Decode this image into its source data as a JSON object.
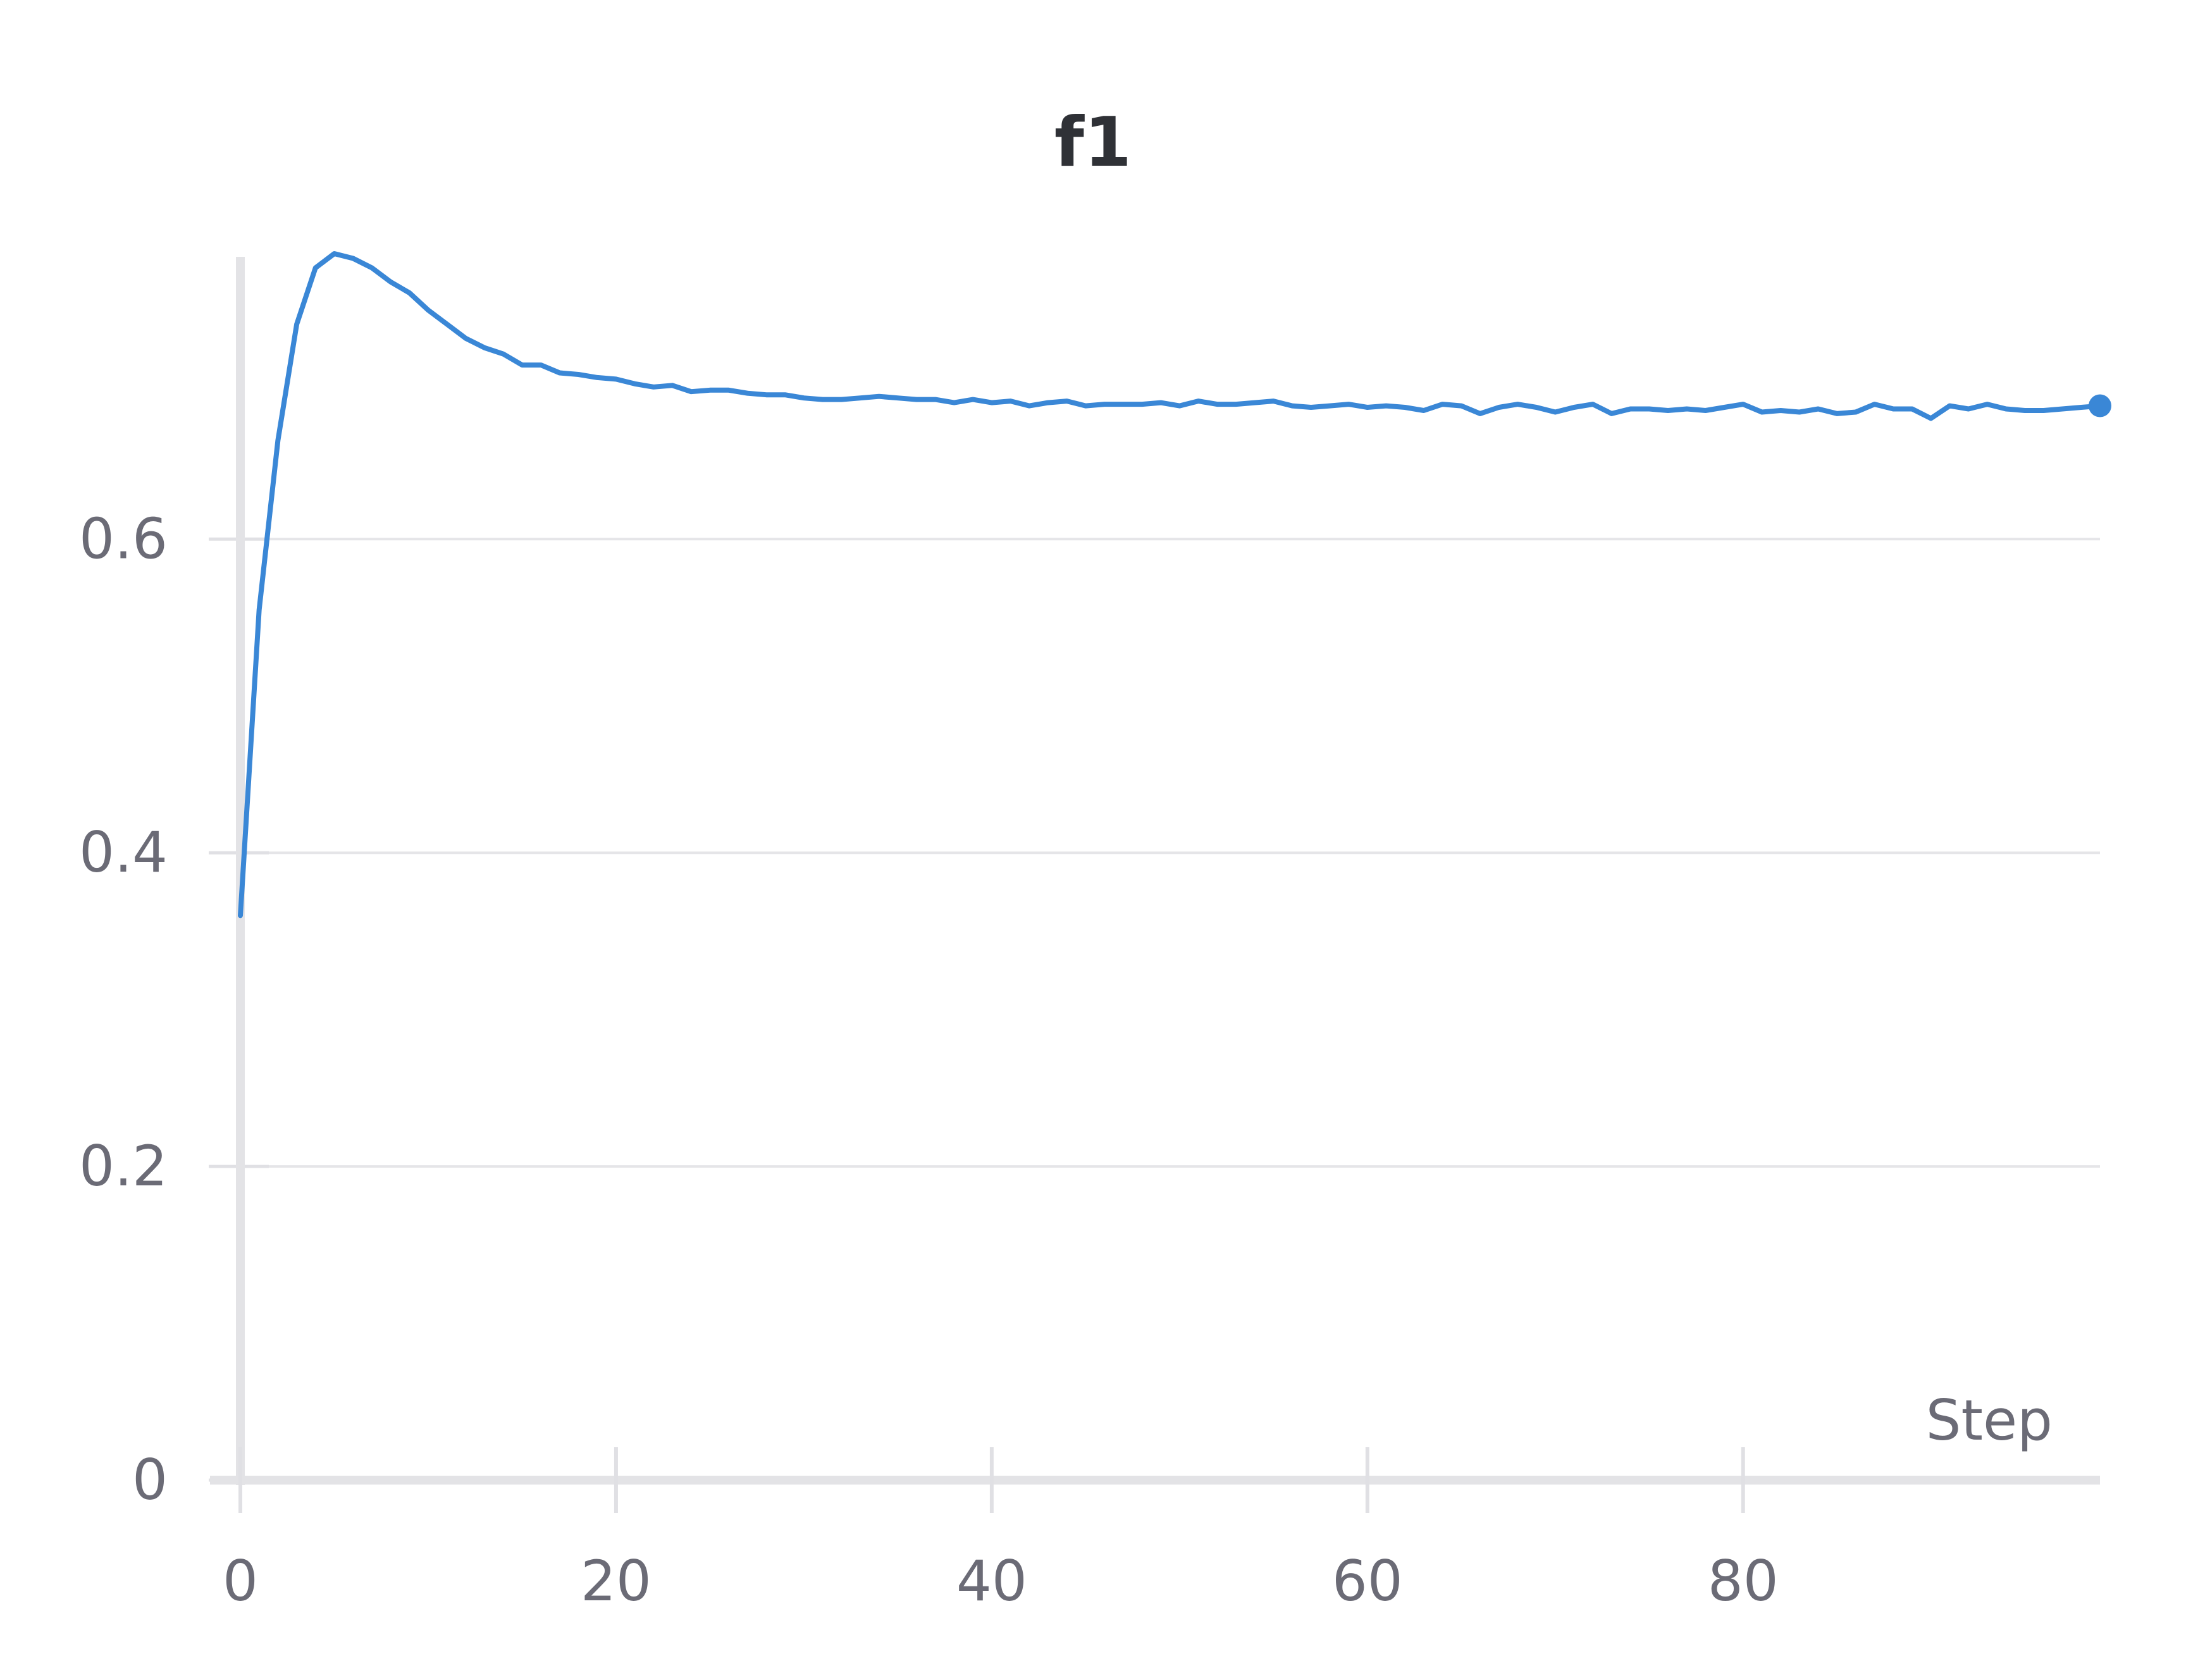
{
  "chart_data": {
    "type": "line",
    "title": "f1",
    "xlabel": "Step",
    "ylabel": "",
    "xlim": [
      0,
      99
    ],
    "ylim": [
      0,
      0.78
    ],
    "xticks": [
      0,
      20,
      40,
      60,
      80
    ],
    "yticks": [
      0,
      0.2,
      0.4,
      0.6
    ],
    "xtick_labels": [
      "0",
      "20",
      "40",
      "60",
      "80"
    ],
    "ytick_labels": [
      "0",
      "0.2",
      "0.4",
      "0.6"
    ],
    "grid": "horizontal",
    "legend": "none",
    "series": [
      {
        "color": "#3a87d6",
        "x": [
          0,
          1,
          2,
          3,
          4,
          5,
          6,
          7,
          8,
          9,
          10,
          11,
          12,
          13,
          14,
          15,
          16,
          17,
          18,
          19,
          20,
          21,
          22,
          23,
          24,
          25,
          26,
          27,
          28,
          29,
          30,
          31,
          32,
          33,
          34,
          35,
          36,
          37,
          38,
          39,
          40,
          41,
          42,
          43,
          44,
          45,
          46,
          47,
          48,
          49,
          50,
          51,
          52,
          53,
          54,
          55,
          56,
          57,
          58,
          59,
          60,
          61,
          62,
          63,
          64,
          65,
          66,
          67,
          68,
          69,
          70,
          71,
          72,
          73,
          74,
          75,
          76,
          77,
          78,
          79,
          80,
          81,
          82,
          83,
          84,
          85,
          86,
          87,
          88,
          89,
          90,
          91,
          92,
          93,
          94,
          95,
          96,
          97,
          98,
          99
        ],
        "y": [
          0.36,
          0.555,
          0.663,
          0.737,
          0.773,
          0.782,
          0.779,
          0.773,
          0.764,
          0.757,
          0.746,
          0.737,
          0.728,
          0.722,
          0.718,
          0.711,
          0.711,
          0.706,
          0.705,
          0.703,
          0.702,
          0.699,
          0.697,
          0.698,
          0.694,
          0.695,
          0.695,
          0.693,
          0.692,
          0.692,
          0.69,
          0.689,
          0.689,
          0.69,
          0.691,
          0.69,
          0.689,
          0.689,
          0.687,
          0.689,
          0.687,
          0.688,
          0.685,
          0.687,
          0.688,
          0.685,
          0.686,
          0.686,
          0.686,
          0.687,
          0.685,
          0.688,
          0.686,
          0.686,
          0.687,
          0.688,
          0.685,
          0.684,
          0.685,
          0.686,
          0.684,
          0.685,
          0.684,
          0.682,
          0.686,
          0.685,
          0.68,
          0.684,
          0.686,
          0.684,
          0.681,
          0.684,
          0.686,
          0.68,
          0.683,
          0.683,
          0.682,
          0.683,
          0.682,
          0.684,
          0.686,
          0.681,
          0.682,
          0.681,
          0.683,
          0.68,
          0.681,
          0.686,
          0.683,
          0.683,
          0.677,
          0.685,
          0.683,
          0.686,
          0.683,
          0.682,
          0.682,
          0.683,
          0.684,
          0.685
        ]
      }
    ]
  }
}
